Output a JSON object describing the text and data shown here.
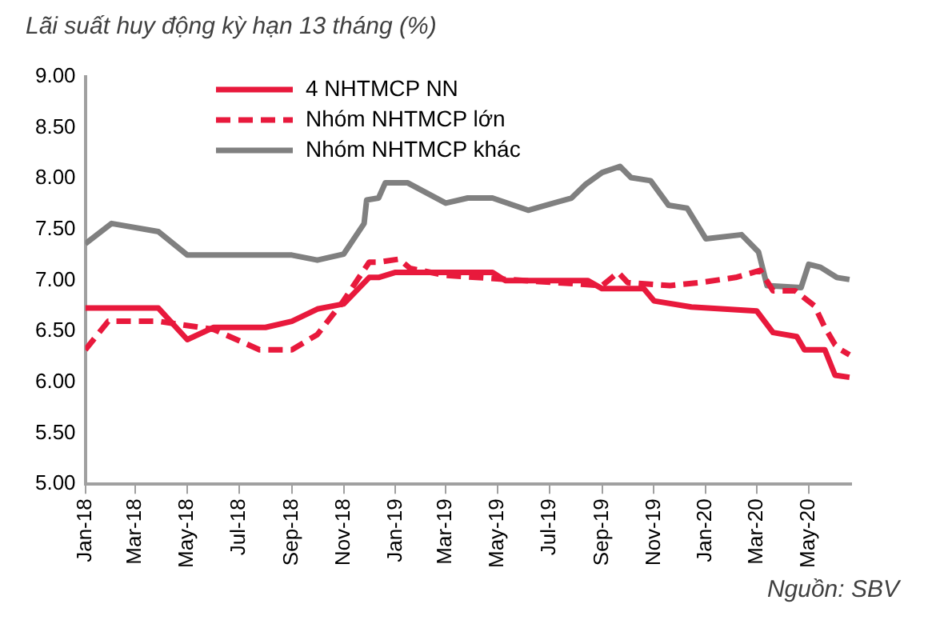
{
  "chart_data": {
    "type": "line",
    "title": "Lãi suất huy động kỳ hạn 13 tháng (%)",
    "series": [
      {
        "name": "4 NHTMCP NN",
        "color": "#e8193c",
        "line_style": "solid",
        "x": [
          "2018-01-01",
          "2018-03-28",
          "2018-05-01",
          "2018-06-01",
          "2018-08-01",
          "2018-09-01",
          "2018-10-01",
          "2018-11-01",
          "2018-12-01",
          "2018-12-12",
          "2019-01-01",
          "2019-04-25",
          "2019-05-10",
          "2019-08-15",
          "2019-09-01",
          "2019-10-20",
          "2019-11-01",
          "2019-12-15",
          "2020-03-01",
          "2020-03-20",
          "2020-04-17",
          "2020-04-26",
          "2020-05-20",
          "2020-06-01",
          "2020-06-18"
        ],
        "values": [
          6.73,
          6.73,
          6.42,
          6.54,
          6.54,
          6.6,
          6.72,
          6.77,
          7.03,
          7.03,
          7.08,
          7.08,
          7.0,
          7.0,
          6.92,
          6.92,
          6.8,
          6.74,
          6.7,
          6.49,
          6.45,
          6.32,
          6.32,
          6.07,
          6.05
        ]
      },
      {
        "name": "Nhóm NHTMCP lớn",
        "color": "#e8193c",
        "line_style": "dashed",
        "x": [
          "2018-01-01",
          "2018-01-28",
          "2018-03-28",
          "2018-06-01",
          "2018-07-25",
          "2018-09-01",
          "2018-10-01",
          "2018-10-30",
          "2018-12-01",
          "2018-12-12",
          "2019-01-05",
          "2019-01-18",
          "2019-03-01",
          "2019-09-01",
          "2019-09-20",
          "2019-10-01",
          "2019-11-20",
          "2019-12-25",
          "2020-02-05",
          "2020-03-05",
          "2020-03-20",
          "2020-04-15",
          "2020-05-08",
          "2020-05-20",
          "2020-06-01",
          "2020-06-08",
          "2020-06-18"
        ],
        "values": [
          6.32,
          6.6,
          6.6,
          6.52,
          6.32,
          6.32,
          6.47,
          6.78,
          7.18,
          7.18,
          7.21,
          7.12,
          7.05,
          6.95,
          7.08,
          6.98,
          6.95,
          6.98,
          7.03,
          7.1,
          6.9,
          6.9,
          6.75,
          6.54,
          6.37,
          6.32,
          6.27
        ]
      },
      {
        "name": "Nhóm NHTMCP khác",
        "color": "#808080",
        "line_style": "solid",
        "x": [
          "2018-01-01",
          "2018-02-01",
          "2018-03-28",
          "2018-05-01",
          "2018-09-01",
          "2018-10-01",
          "2018-11-01",
          "2018-11-25",
          "2018-11-28",
          "2018-12-12",
          "2018-12-20",
          "2019-01-15",
          "2019-03-01",
          "2019-03-27",
          "2019-04-25",
          "2019-06-06",
          "2019-07-27",
          "2019-08-12",
          "2019-09-01",
          "2019-09-22",
          "2019-10-05",
          "2019-10-28",
          "2019-11-18",
          "2019-12-10",
          "2020-01-01",
          "2020-02-12",
          "2020-03-03",
          "2020-03-13",
          "2020-04-22",
          "2020-05-01",
          "2020-05-15",
          "2020-06-03",
          "2020-06-18"
        ],
        "values": [
          7.36,
          7.56,
          7.48,
          7.25,
          7.25,
          7.2,
          7.26,
          7.56,
          7.79,
          7.81,
          7.96,
          7.96,
          7.76,
          7.81,
          7.81,
          7.69,
          7.81,
          7.94,
          8.06,
          8.12,
          8.01,
          7.98,
          7.74,
          7.71,
          7.41,
          7.45,
          7.28,
          6.95,
          6.93,
          7.16,
          7.13,
          7.03,
          7.01
        ]
      }
    ],
    "xlim": [
      "2018-01-01",
      "2020-06-20"
    ],
    "xticks": [
      {
        "value": "2018-01",
        "label": "Jan-18"
      },
      {
        "value": "2018-03",
        "label": "Mar-18"
      },
      {
        "value": "2018-05",
        "label": "May-18"
      },
      {
        "value": "2018-07",
        "label": "Jul-18"
      },
      {
        "value": "2018-09",
        "label": "Sep-18"
      },
      {
        "value": "2018-11",
        "label": "Nov-18"
      },
      {
        "value": "2019-01",
        "label": "Jan-19"
      },
      {
        "value": "2019-03",
        "label": "Mar-19"
      },
      {
        "value": "2019-05",
        "label": "May-19"
      },
      {
        "value": "2019-07",
        "label": "Jul-19"
      },
      {
        "value": "2019-09",
        "label": "Sep-19"
      },
      {
        "value": "2019-11",
        "label": "Nov-19"
      },
      {
        "value": "2020-01",
        "label": "Jan-20"
      },
      {
        "value": "2020-03",
        "label": "Mar-20"
      },
      {
        "value": "2020-05",
        "label": "May-20"
      }
    ],
    "ylim": [
      5,
      9
    ],
    "yticks": [
      {
        "value": 5,
        "label": "5.00"
      },
      {
        "value": 5.5,
        "label": "5.50"
      },
      {
        "value": 6,
        "label": "6.00"
      },
      {
        "value": 6.5,
        "label": "6.50"
      },
      {
        "value": 7,
        "label": "7.00"
      },
      {
        "value": 7.5,
        "label": "7.50"
      },
      {
        "value": 8,
        "label": "8.00"
      },
      {
        "value": 8.5,
        "label": "8.50"
      },
      {
        "value": 9,
        "label": "9.00"
      }
    ],
    "grid": false,
    "legend": "top left",
    "marker": "none",
    "annotations": [
      "Nguồn: SBV"
    ]
  }
}
